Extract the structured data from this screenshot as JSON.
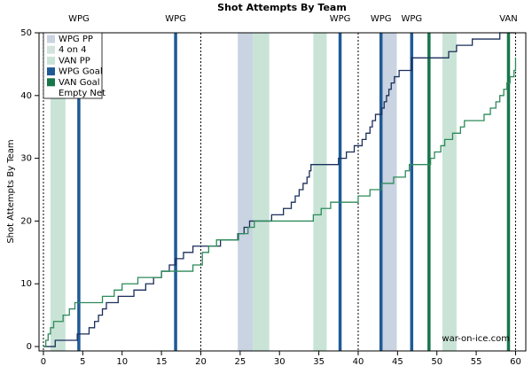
{
  "chart_data": {
    "type": "step",
    "title": "Shot Attempts By Team",
    "ylabel": "Shot Attempts By Team",
    "annotation": "war-on-ice.com",
    "xlim": [
      -0.56,
      61.3
    ],
    "ylim": [
      -0.7,
      50
    ],
    "xticks": [
      0,
      5,
      10,
      15,
      20,
      25,
      30,
      35,
      40,
      45,
      50,
      55,
      60
    ],
    "yticks": [
      0,
      10,
      20,
      30,
      40,
      50
    ],
    "period_lines": [
      0,
      20,
      40,
      60
    ],
    "shading": [
      {
        "name": "WPG PP",
        "color": "#c9d3e1",
        "spans": [
          [
            24.7,
            26.6
          ],
          [
            42.9,
            44.9
          ]
        ]
      },
      {
        "name": "4 on 4",
        "color": "#d3e4dd",
        "spans": []
      },
      {
        "name": "VAN PP",
        "color": "#c9e4d7",
        "spans": [
          [
            0.9,
            2.8
          ],
          [
            26.6,
            28.7
          ],
          [
            34.3,
            36.0
          ],
          [
            50.7,
            52.5
          ]
        ]
      }
    ],
    "goals": [
      {
        "name": "WPG Goal",
        "color": "#1f5a96",
        "x": [
          4.5,
          16.8,
          37.7,
          42.9,
          46.8
        ],
        "labels": [
          "WPG",
          "WPG",
          "WPG",
          "WPG",
          "WPG"
        ]
      },
      {
        "name": "VAN Goal",
        "color": "#17764a",
        "x": [
          49.0,
          59.1
        ],
        "labels": [
          null,
          "VAN"
        ]
      }
    ],
    "empty_net": "Empty Net",
    "series": [
      {
        "color": "#1a2f5a",
        "x": [
          0,
          1.5,
          4.3,
          5.8,
          6.5,
          7.0,
          7.5,
          8.0,
          9.5,
          11.5,
          13.0,
          14.0,
          15.0,
          16.0,
          16.8,
          17.8,
          19.0,
          22.5,
          24.7,
          25.5,
          26.2,
          29.0,
          30.5,
          31.5,
          32.0,
          32.5,
          33.0,
          33.5,
          33.8,
          34.0,
          37.5,
          38.5,
          39.5,
          40.5,
          41.0,
          41.5,
          41.8,
          42.2,
          43.0,
          43.3,
          43.6,
          43.9,
          44.2,
          44.6,
          45.2,
          46.8,
          51.5,
          52.5,
          54.5,
          58.0,
          60.0
        ],
        "values": [
          0,
          1,
          2,
          3,
          4,
          5,
          6,
          7,
          8,
          9,
          10,
          11,
          12,
          13,
          14,
          15,
          16,
          17,
          18,
          19,
          20,
          21,
          22,
          23,
          24,
          25,
          26,
          27,
          28,
          29,
          30,
          31,
          32,
          33,
          34,
          35,
          36,
          37,
          38,
          39,
          40,
          41,
          42,
          43,
          44,
          46,
          47,
          48,
          49,
          50,
          50
        ]
      },
      {
        "color": "#2d8a5a",
        "x": [
          0,
          0.3,
          0.6,
          0.9,
          1.3,
          2.5,
          3.3,
          4.0,
          7.5,
          9.0,
          10.0,
          12.0,
          15.0,
          19.0,
          20.2,
          21.0,
          22.0,
          24.8,
          26.0,
          26.8,
          34.3,
          35.3,
          36.5,
          40.0,
          41.5,
          43.0,
          44.5,
          46.0,
          46.5,
          49.2,
          49.7,
          50.5,
          51.0,
          52.0,
          53.0,
          53.5,
          56.0,
          56.8,
          57.5,
          58.0,
          58.5,
          58.9,
          59.3,
          59.8,
          60.0
        ],
        "values": [
          0,
          1,
          2,
          3,
          4,
          5,
          6,
          7,
          8,
          9,
          10,
          11,
          12,
          13,
          15,
          16,
          17,
          18,
          19,
          20,
          21,
          22,
          23,
          24,
          25,
          26,
          27,
          28,
          29,
          30,
          31,
          32,
          33,
          34,
          35,
          36,
          37,
          38,
          39,
          40,
          41,
          42,
          43,
          44,
          46
        ]
      }
    ]
  }
}
